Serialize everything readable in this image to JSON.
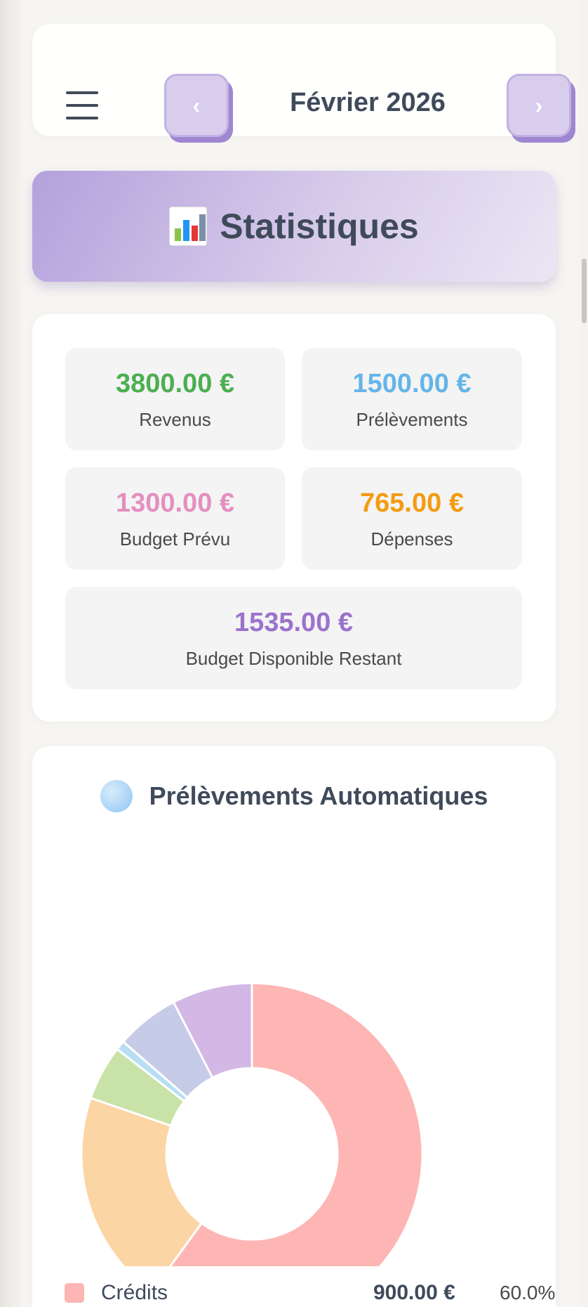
{
  "header": {
    "menu_icon": "hamburger-icon",
    "prev_label": "‹",
    "next_label": "›",
    "month": "Février 2026"
  },
  "banner": {
    "icon": "bar-chart-emoji",
    "title": "Statistiques"
  },
  "stats": {
    "revenus": {
      "value": "3800.00 €",
      "label": "Revenus",
      "color": "#4caf50"
    },
    "prelevements": {
      "value": "1500.00 €",
      "label": "Prélèvements",
      "color": "#64b5e8"
    },
    "budget_prevu": {
      "value": "1300.00 €",
      "label": "Budget Prévu",
      "color": "#e48fbf"
    },
    "depenses": {
      "value": "765.00 €",
      "label": "Dépenses",
      "color": "#f39c12"
    },
    "restant": {
      "value": "1535.00 €",
      "label": "Budget Disponible Restant",
      "color": "#9b72cc"
    }
  },
  "chart_card": {
    "title": "Prélèvements Automatiques",
    "title_icon": "blue-circle-icon"
  },
  "chart_data": {
    "type": "pie",
    "subtype": "donut",
    "slices": [
      {
        "name": "Crédits",
        "percent": 60.0,
        "color": "#fdb6b4"
      },
      {
        "percent": 20.3,
        "color": "#fcd5a5"
      },
      {
        "percent": 5.2,
        "color": "#c9e2a8"
      },
      {
        "percent": 0.9,
        "color": "#b7def5"
      },
      {
        "percent": 6.0,
        "color": "#c6cbe8"
      },
      {
        "percent": 7.6,
        "color": "#d3b7e5"
      }
    ]
  },
  "legend": [
    {
      "name": "Crédits",
      "amount": "900.00 €",
      "percent": "60.0%",
      "color": "#fdb6b4"
    }
  ]
}
